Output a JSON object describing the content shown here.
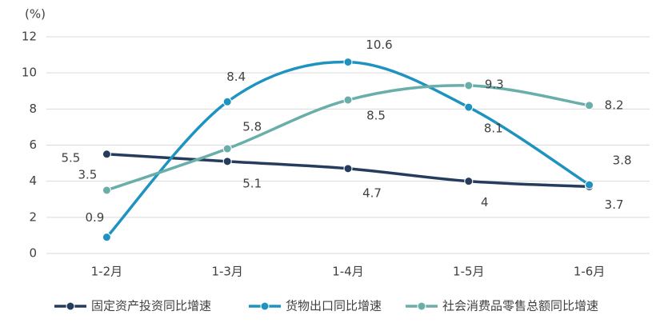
{
  "chart_data": {
    "type": "line",
    "y_label": "(%)",
    "categories": [
      "1-2月",
      "1-3月",
      "1-4月",
      "1-5月",
      "1-6月"
    ],
    "series": [
      {
        "name": "固定资产投资同比增速",
        "color": "#263c5c",
        "values": [
          5.5,
          5.1,
          4.7,
          4,
          3.7
        ]
      },
      {
        "name": "货物出口同比增速",
        "color": "#1f93c0",
        "values": [
          0.9,
          8.4,
          10.6,
          8.1,
          3.8
        ]
      },
      {
        "name": "社会消费品零售总额同比增速",
        "color": "#6aaeaa",
        "values": [
          3.5,
          5.8,
          8.5,
          9.3,
          8.2
        ]
      }
    ],
    "ylim": [
      0,
      12
    ],
    "yticks": [
      0,
      2,
      4,
      6,
      8,
      10,
      12
    ],
    "grid": true,
    "smooth": true,
    "legend": "bottom"
  }
}
